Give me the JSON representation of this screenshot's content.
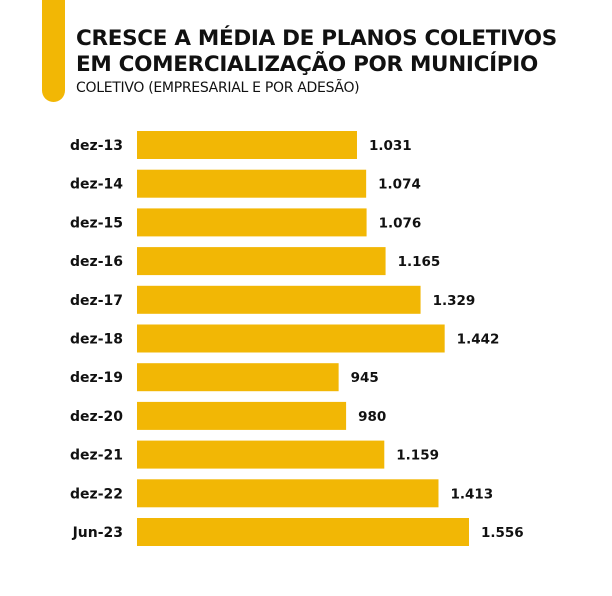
{
  "colors": {
    "accent": "#F2B705",
    "bar": "#F2B705",
    "text": "#111111"
  },
  "chart_data": {
    "type": "bar",
    "orientation": "horizontal",
    "title": "CRESCE A MÉDIA DE PLANOS COLETIVOS EM COMERCIALIZAÇÃO POR MUNICÍPIO",
    "title_lines": [
      "CRESCE A MÉDIA DE PLANOS COLETIVOS",
      "EM COMERCIALIZAÇÃO POR MUNICÍPIO"
    ],
    "subtitle": "COLETIVO (EMPRESARIAL E POR ADESÃO)",
    "categories": [
      "dez-13",
      "dez-14",
      "dez-15",
      "dez-16",
      "dez-17",
      "dez-18",
      "dez-19",
      "dez-20",
      "dez-21",
      "dez-22",
      "Jun-23"
    ],
    "values": [
      1031,
      1074,
      1076,
      1165,
      1329,
      1442,
      945,
      980,
      1159,
      1413,
      1556
    ],
    "value_labels": [
      "1.031",
      "1.074",
      "1.076",
      "1.165",
      "1.329",
      "1.442",
      "945",
      "980",
      "1.159",
      "1.413",
      "1.556"
    ],
    "xlim": [
      0,
      1556
    ],
    "grid": false,
    "legend": "none"
  }
}
